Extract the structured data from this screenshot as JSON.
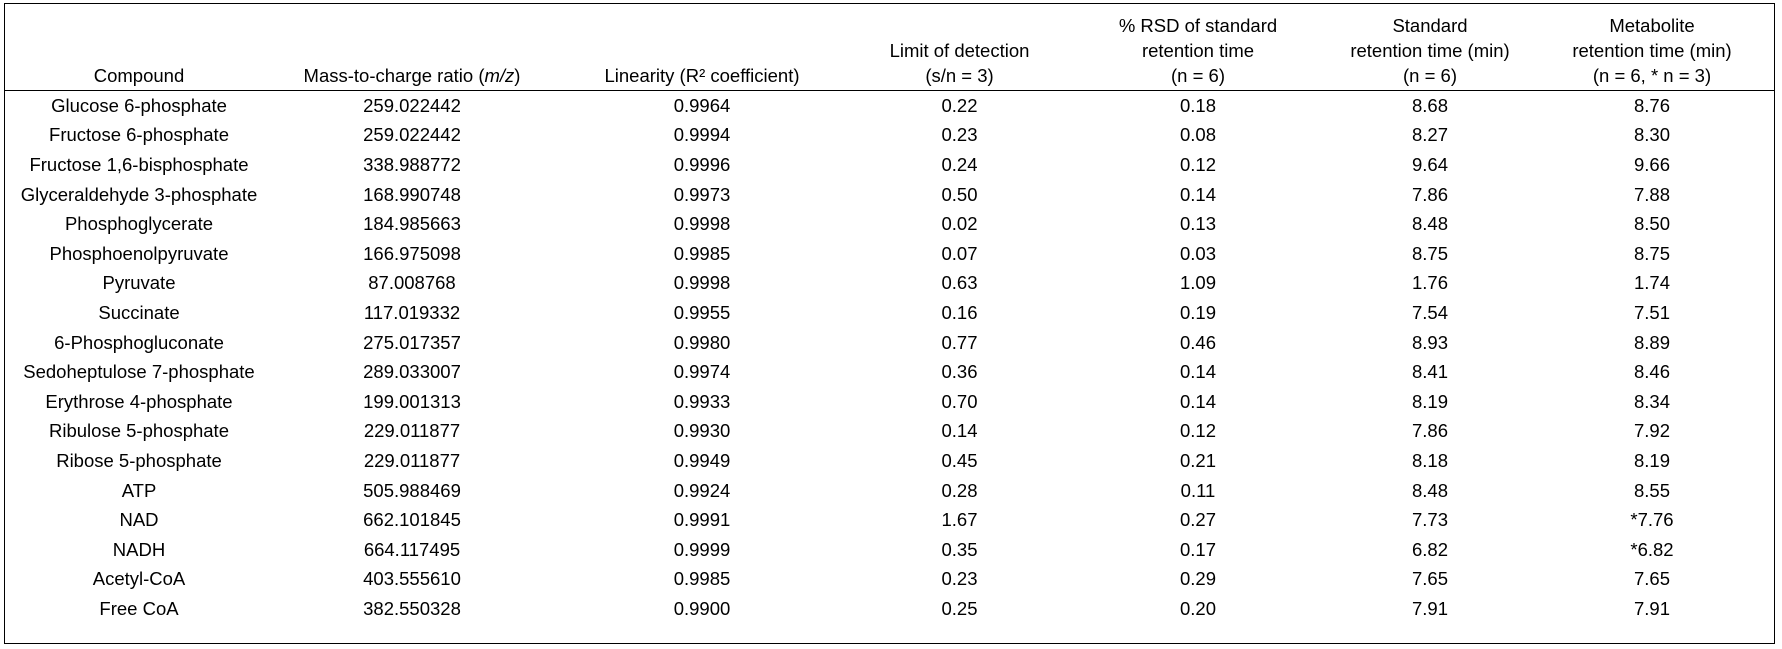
{
  "table": {
    "headers": [
      {
        "lines": [
          "Compound"
        ]
      },
      {
        "lines": [
          "Mass-to-charge ratio (m/z)"
        ],
        "pre": "Mass-to-charge ratio (",
        "em": "m/z",
        "post": ")"
      },
      {
        "lines": [
          "Linearity (R² coefficient)"
        ]
      },
      {
        "lines": [
          "Limit of detection",
          "(s/n = 3)"
        ]
      },
      {
        "lines": [
          "% RSD of standard",
          "retention time",
          "(n = 6)"
        ]
      },
      {
        "lines": [
          "Standard",
          "retention time (min)",
          "(n = 6)"
        ]
      },
      {
        "lines": [
          "Metabolite",
          "retention time (min)",
          "(n = 6, * n = 3)"
        ]
      }
    ],
    "rows": [
      [
        "Glucose 6-phosphate",
        "259.022442",
        "0.9964",
        "0.22",
        "0.18",
        "8.68",
        "8.76"
      ],
      [
        "Fructose 6-phosphate",
        "259.022442",
        "0.9994",
        "0.23",
        "0.08",
        "8.27",
        "8.30"
      ],
      [
        "Fructose 1,6-bisphosphate",
        "338.988772",
        "0.9996",
        "0.24",
        "0.12",
        "9.64",
        "9.66"
      ],
      [
        "Glyceraldehyde 3-phosphate",
        "168.990748",
        "0.9973",
        "0.50",
        "0.14",
        "7.86",
        "7.88"
      ],
      [
        "Phosphoglycerate",
        "184.985663",
        "0.9998",
        "0.02",
        "0.13",
        "8.48",
        "8.50"
      ],
      [
        "Phosphoenolpyruvate",
        "166.975098",
        "0.9985",
        "0.07",
        "0.03",
        "8.75",
        "8.75"
      ],
      [
        "Pyruvate",
        "87.008768",
        "0.9998",
        "0.63",
        "1.09",
        "1.76",
        "1.74"
      ],
      [
        "Succinate",
        "117.019332",
        "0.9955",
        "0.16",
        "0.19",
        "7.54",
        "7.51"
      ],
      [
        "6-Phosphogluconate",
        "275.017357",
        "0.9980",
        "0.77",
        "0.46",
        "8.93",
        "8.89"
      ],
      [
        "Sedoheptulose 7-phosphate",
        "289.033007",
        "0.9974",
        "0.36",
        "0.14",
        "8.41",
        "8.46"
      ],
      [
        "Erythrose 4-phosphate",
        "199.001313",
        "0.9933",
        "0.70",
        "0.14",
        "8.19",
        "8.34"
      ],
      [
        "Ribulose 5-phosphate",
        "229.011877",
        "0.9930",
        "0.14",
        "0.12",
        "7.86",
        "7.92"
      ],
      [
        "Ribose 5-phosphate",
        "229.011877",
        "0.9949",
        "0.45",
        "0.21",
        "8.18",
        "8.19"
      ],
      [
        "ATP",
        "505.988469",
        "0.9924",
        "0.28",
        "0.11",
        "8.48",
        "8.55"
      ],
      [
        "NAD",
        "662.101845",
        "0.9991",
        "1.67",
        "0.27",
        "7.73",
        "*7.76"
      ],
      [
        "NADH",
        "664.117495",
        "0.9999",
        "0.35",
        "0.17",
        "6.82",
        "*6.82"
      ],
      [
        "Acetyl-CoA",
        "403.555610",
        "0.9985",
        "0.23",
        "0.29",
        "7.65",
        "7.65"
      ],
      [
        "Free CoA",
        "382.550328",
        "0.9900",
        "0.25",
        "0.20",
        "7.91",
        "7.91"
      ]
    ]
  }
}
